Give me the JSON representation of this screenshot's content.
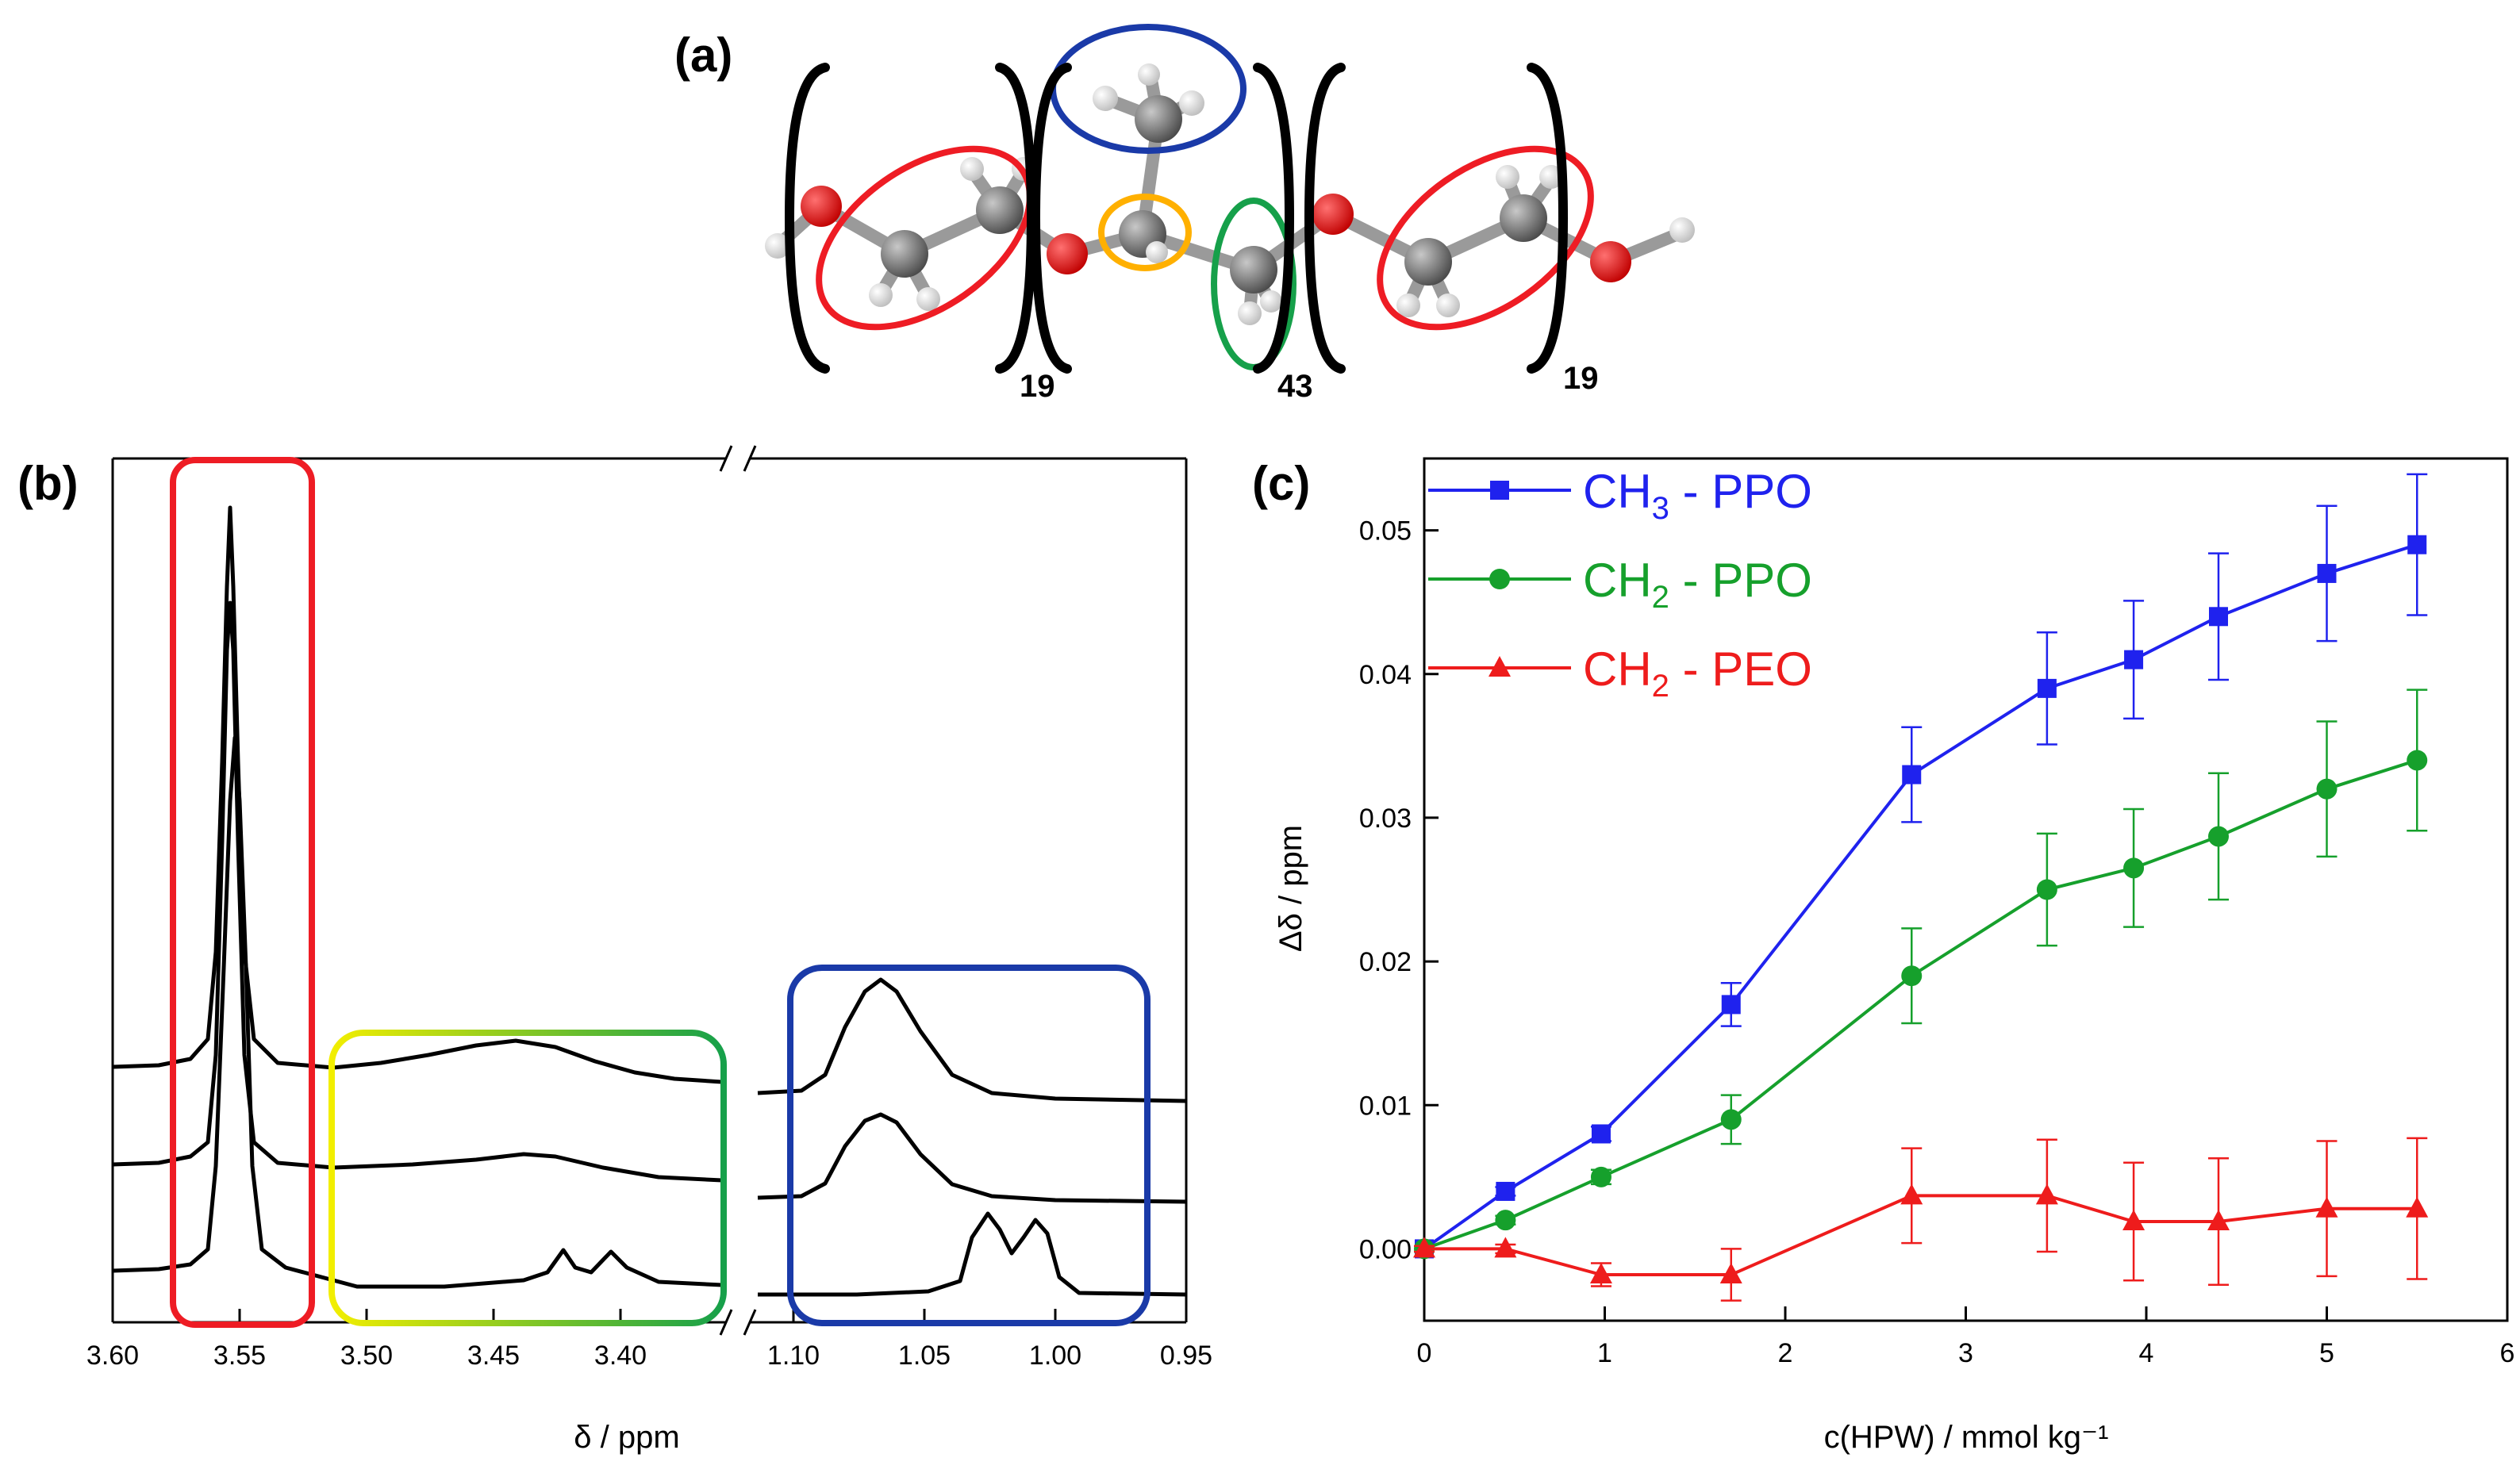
{
  "panel_labels": {
    "a": "(a)",
    "b": "(b)",
    "c": "(c)"
  },
  "molecule": {
    "repeat_counts": [
      "19",
      "43",
      "19"
    ],
    "highlight_colors": {
      "peo": "#ee1c24",
      "ch3": "#1a3aa8",
      "ch": "#ffb000",
      "ch2_ppo": "#16a04a"
    }
  },
  "spectrum": {
    "xlabel": "δ / ppm",
    "left_ticks": [
      "3.60",
      "3.55",
      "3.50",
      "3.45",
      "3.40"
    ],
    "right_ticks": [
      "1.10",
      "1.05",
      "1.00",
      "0.95"
    ],
    "box_colors": {
      "peo": "#ee1c24",
      "ppo_ch2_start": "#f2ee00",
      "ppo_ch2_end": "#16a04a",
      "ch3": "#1a3aa8"
    }
  },
  "chart_data": {
    "type": "line",
    "xlabel": "c(HPW) / mmol kg⁻¹",
    "ylabel": "Δδ / ppm",
    "xlim": [
      0,
      6
    ],
    "ylim": [
      -0.005,
      0.055
    ],
    "xticks": [
      0,
      1,
      2,
      3,
      4,
      5,
      6
    ],
    "yticks": [
      0.0,
      0.01,
      0.02,
      0.03,
      0.04,
      0.05
    ],
    "x_tick_labels": [
      "0",
      "1",
      "2",
      "3",
      "4",
      "5",
      "6"
    ],
    "y_tick_labels": [
      "0.00",
      "0.01",
      "0.02",
      "0.03",
      "0.04",
      "0.05"
    ],
    "series": [
      {
        "name": "CH3 - PPO",
        "label_main": "CH",
        "label_sub": "3",
        "label_rest": " - PPO",
        "color": "#1f22ee",
        "marker": "square",
        "x": [
          0,
          0.45,
          0.98,
          1.7,
          2.7,
          3.45,
          3.93,
          4.4,
          5.0,
          5.5
        ],
        "y": [
          0.0,
          0.004,
          0.008,
          0.017,
          0.033,
          0.039,
          0.041,
          0.044,
          0.047,
          0.049
        ],
        "err": [
          0.0002,
          0.0003,
          0.0005,
          0.0015,
          0.0033,
          0.0039,
          0.0041,
          0.0044,
          0.0047,
          0.0049
        ]
      },
      {
        "name": "CH2 - PPO",
        "label_main": "CH",
        "label_sub": "2",
        "label_rest": " - PPO",
        "color": "#16a02c",
        "marker": "circle",
        "x": [
          0,
          0.45,
          0.98,
          1.7,
          2.7,
          3.45,
          3.93,
          4.4,
          5.0,
          5.5
        ],
        "y": [
          0.0,
          0.002,
          0.005,
          0.009,
          0.019,
          0.025,
          0.0265,
          0.0287,
          0.032,
          0.034
        ],
        "err": [
          0.0002,
          0.0003,
          0.0005,
          0.0017,
          0.0033,
          0.0039,
          0.0041,
          0.0044,
          0.0047,
          0.0049
        ]
      },
      {
        "name": "CH2 - PEO",
        "label_main": "CH",
        "label_sub": "2",
        "label_rest": " - PEO",
        "color": "#ee1c1c",
        "marker": "triangle",
        "x": [
          0,
          0.45,
          0.98,
          1.7,
          2.7,
          3.45,
          3.93,
          4.4,
          5.0,
          5.5
        ],
        "y": [
          0.0,
          0.0,
          -0.0018,
          -0.0018,
          0.0037,
          0.0037,
          0.0019,
          0.0019,
          0.0028,
          0.0028
        ],
        "err": [
          0.0002,
          0.0003,
          0.0008,
          0.0018,
          0.0033,
          0.0039,
          0.0041,
          0.0044,
          0.0047,
          0.0049
        ]
      }
    ]
  }
}
